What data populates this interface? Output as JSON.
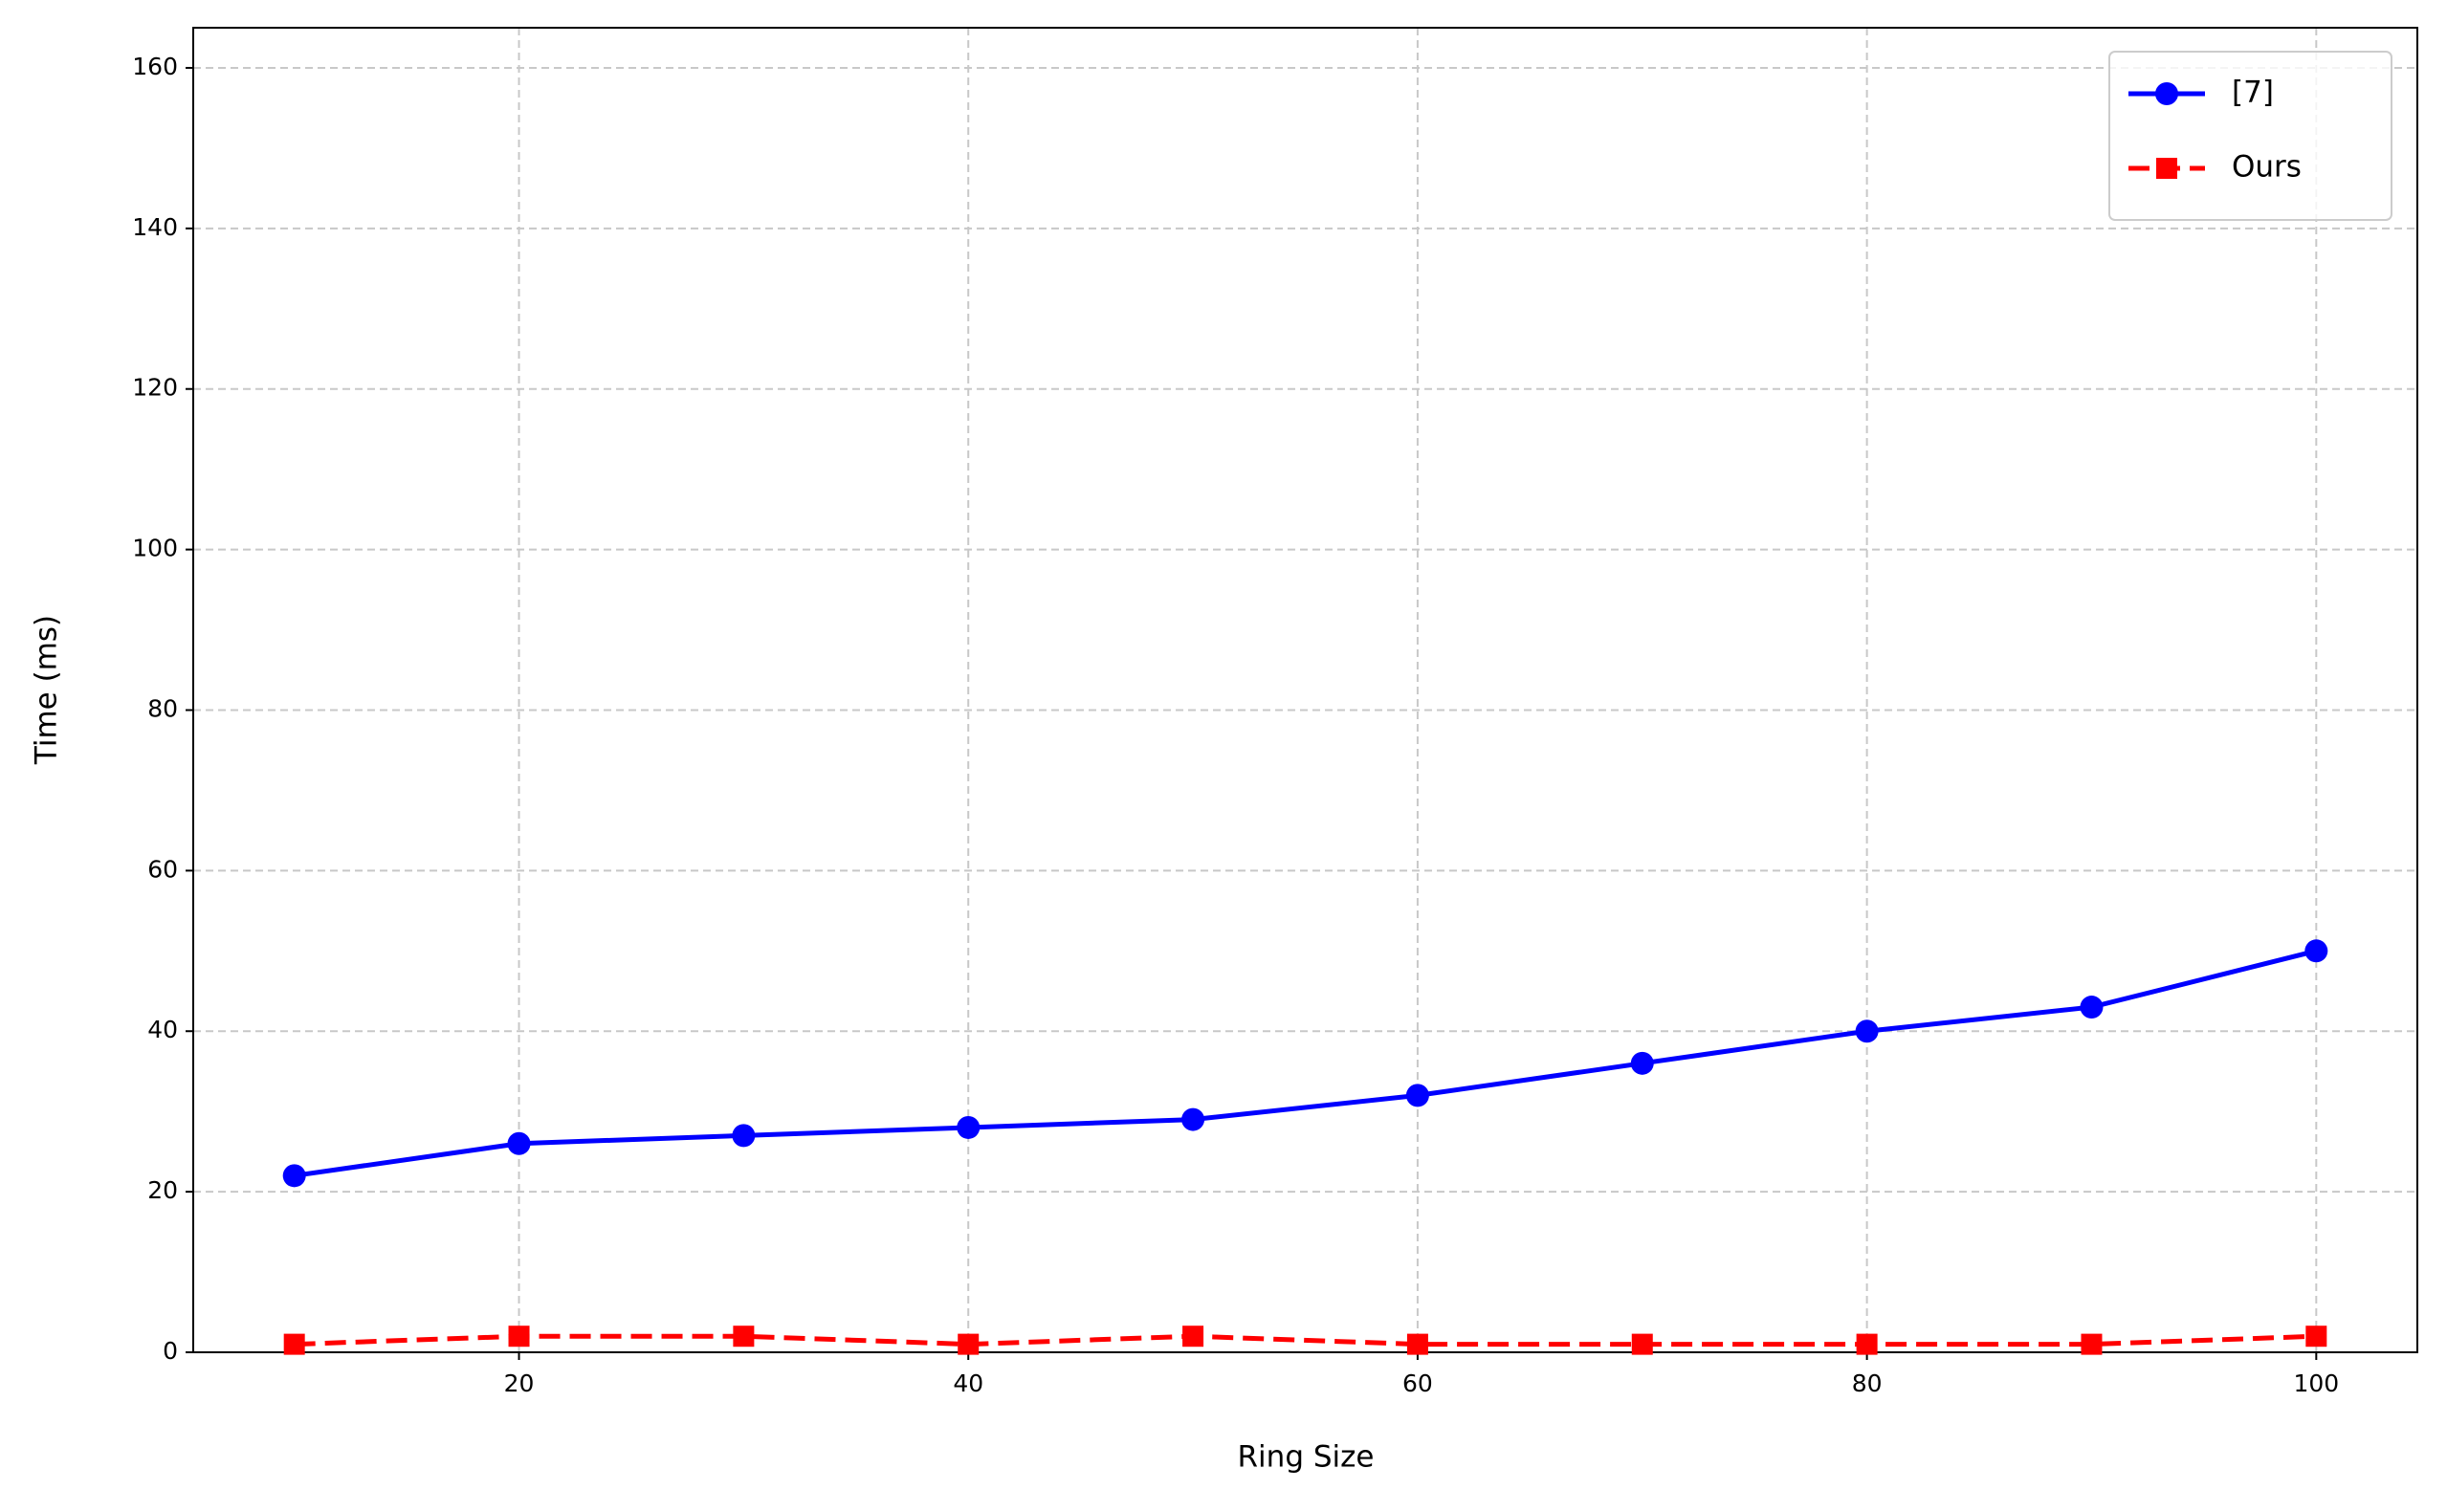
{
  "chart_data": {
    "type": "line",
    "x_label": "Ring Size",
    "y_label": "Time (ms)",
    "x": [
      10,
      20,
      30,
      40,
      50,
      60,
      70,
      80,
      90,
      100
    ],
    "series": [
      {
        "name": "[7]",
        "color": "#0000ff",
        "marker": "circle",
        "dash": "solid",
        "values": [
          22,
          26,
          27,
          28,
          29,
          32,
          36,
          40,
          43,
          50
        ]
      },
      {
        "name": "Ours",
        "color": "#ff0000",
        "marker": "square",
        "dash": "dashed",
        "values": [
          1,
          2,
          2,
          1,
          2,
          1,
          1,
          1,
          1,
          2
        ]
      }
    ],
    "xlim": [
      5.5,
      104.5
    ],
    "xticks": [
      20,
      40,
      60,
      80,
      100
    ],
    "ylim": [
      0,
      165
    ],
    "yticks": [
      0,
      20,
      40,
      60,
      80,
      100,
      120,
      140,
      160
    ],
    "grid": true,
    "legend": "upper right"
  }
}
